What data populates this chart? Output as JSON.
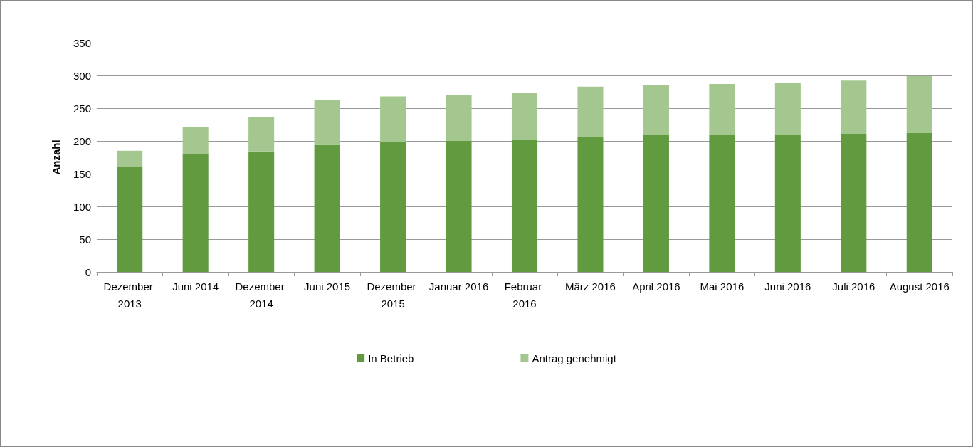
{
  "chart_data": {
    "type": "bar",
    "stacked": true,
    "ylabel": "Anzahl",
    "categories": [
      "Dezember 2013",
      "Juni 2014",
      "Dezember 2014",
      "Juni 2015",
      "Dezember 2015",
      "Januar 2016",
      "Februar 2016",
      "März 2016",
      "April 2016",
      "Mai 2016",
      "Juni 2016",
      "Juli 2016",
      "August 2016"
    ],
    "series": [
      {
        "name": "In Betrieb",
        "color": "#629b3f",
        "values": [
          160,
          180,
          184,
          194,
          198,
          200,
          202,
          206,
          209,
          209,
          209,
          211,
          212
        ]
      },
      {
        "name": "Antrag genehmigt",
        "color": "#a3c78e",
        "values": [
          25,
          41,
          52,
          69,
          70,
          70,
          72,
          77,
          77,
          78,
          79,
          81,
          87
        ]
      }
    ],
    "ylim": [
      0,
      350
    ],
    "yticks": [
      0,
      50,
      100,
      150,
      200,
      250,
      300,
      350
    ],
    "grid": "y",
    "legend": "bottom"
  }
}
